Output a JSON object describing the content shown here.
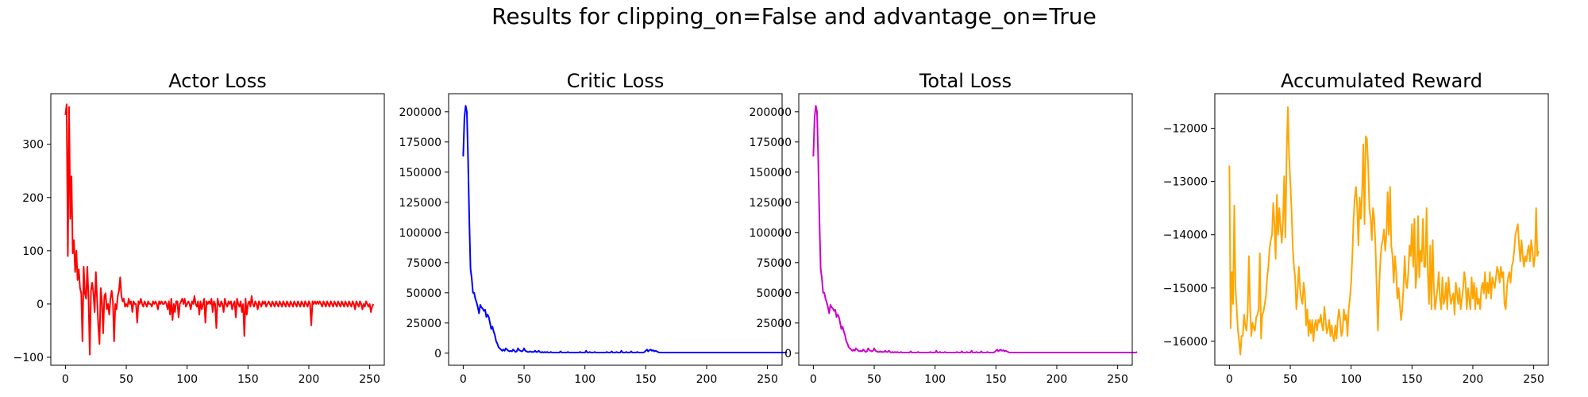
{
  "figure": {
    "suptitle": "Results for clipping_on=False and advantage_on=True"
  },
  "chart_data": [
    {
      "type": "line",
      "title": "Actor Loss",
      "xlabel": "",
      "ylabel": "",
      "color": "#ff0000",
      "xlim": [
        -12,
        262
      ],
      "ylim": [
        -115,
        395
      ],
      "xticks": [
        0,
        50,
        100,
        150,
        200,
        250
      ],
      "yticks": [
        -100,
        0,
        100,
        200,
        300
      ],
      "xtick_labels": [
        "0",
        "50",
        "100",
        "150",
        "200",
        "250"
      ],
      "ytick_labels": [
        "−100",
        "0",
        "100",
        "200",
        "300"
      ],
      "grid": false,
      "x_start": 0,
      "x_step": 1,
      "y": [
        355,
        375,
        90,
        370,
        160,
        240,
        95,
        120,
        60,
        100,
        45,
        65,
        30,
        20,
        -70,
        70,
        20,
        10,
        70,
        10,
        -95,
        25,
        40,
        20,
        -15,
        60,
        10,
        -40,
        -75,
        30,
        5,
        -55,
        15,
        20,
        -10,
        0,
        -20,
        10,
        25,
        5,
        -70,
        0,
        -10,
        15,
        25,
        50,
        15,
        5,
        10,
        -5,
        0,
        -5,
        10,
        0,
        5,
        -15,
        5,
        0,
        0,
        -35,
        5,
        0,
        10,
        0,
        -5,
        5,
        0,
        -5,
        5,
        0,
        0,
        -5,
        5,
        0,
        5,
        0,
        -10,
        5,
        0,
        5,
        0,
        0,
        5,
        0,
        -10,
        5,
        -20,
        10,
        -30,
        0,
        -15,
        5,
        5,
        -25,
        0,
        5,
        10,
        0,
        10,
        -5,
        0,
        5,
        0,
        -10,
        5,
        0,
        15,
        0,
        -5,
        5,
        -20,
        5,
        -10,
        0,
        10,
        -35,
        5,
        0,
        5,
        0,
        10,
        -15,
        5,
        0,
        -45,
        10,
        0,
        -5,
        5,
        0,
        -15,
        10,
        0,
        -5,
        5,
        0,
        5,
        -10,
        0,
        5,
        -25,
        10,
        0,
        -5,
        5,
        -15,
        0,
        -60,
        10,
        -20,
        0,
        5,
        -5,
        15,
        0,
        -5,
        5,
        0,
        -10,
        5,
        0,
        -5,
        5,
        0,
        5,
        -5,
        0,
        5,
        0,
        -5,
        5,
        0,
        -5,
        5,
        0,
        -5,
        5,
        0,
        -5,
        5,
        0,
        -5,
        5,
        0,
        -5,
        5,
        0,
        -5,
        5,
        0,
        -5,
        5,
        0,
        -5,
        5,
        0,
        -5,
        5,
        0,
        -5,
        5,
        0,
        -40,
        5,
        0,
        5,
        0,
        5,
        0,
        5,
        0,
        -5,
        5,
        0,
        -5,
        5,
        0,
        -5,
        5,
        0,
        -5,
        5,
        0,
        -5,
        5,
        0,
        -5,
        5,
        0,
        -5,
        5,
        0,
        -5,
        5,
        0,
        -5,
        5,
        0,
        -10,
        5,
        0,
        -5,
        5,
        0,
        -10,
        0,
        -5,
        5,
        0,
        -5,
        0,
        -15,
        -5,
        0
      ]
    },
    {
      "type": "line",
      "title": "Critic Loss",
      "xlabel": "",
      "ylabel": "",
      "color": "#0000ff",
      "xlim": [
        -12,
        262
      ],
      "ylim": [
        -10000,
        215000
      ],
      "xticks": [
        0,
        50,
        100,
        150,
        200,
        250
      ],
      "yticks": [
        0,
        25000,
        50000,
        75000,
        100000,
        125000,
        150000,
        175000,
        200000
      ],
      "xtick_labels": [
        "0",
        "50",
        "100",
        "150",
        "200",
        "250"
      ],
      "ytick_labels": [
        "0",
        "25000",
        "50000",
        "75000",
        "100000",
        "125000",
        "150000",
        "175000",
        "200000"
      ],
      "grid": false,
      "x_start": 0,
      "x_step": 1,
      "y": [
        163000,
        195000,
        205000,
        200000,
        160000,
        110000,
        70000,
        62000,
        50000,
        50000,
        45000,
        42000,
        38000,
        33000,
        40000,
        38000,
        37000,
        35000,
        36000,
        30000,
        32000,
        30000,
        25000,
        20000,
        22000,
        18000,
        15000,
        10000,
        8000,
        5000,
        4000,
        3000,
        2000,
        3000,
        2000,
        4000,
        3000,
        2000,
        1500,
        2000,
        1500,
        3000,
        2000,
        1000,
        1500,
        4000,
        2500,
        2000,
        1500,
        2000,
        4000,
        2000,
        1500,
        1000,
        1000,
        1500,
        1000,
        1000,
        1000,
        2000,
        1000,
        1000,
        2000,
        1000,
        500,
        1000,
        500,
        1000,
        500,
        1000,
        500,
        500,
        1000,
        500,
        500,
        500,
        500,
        500,
        500,
        500,
        1500,
        500,
        500,
        500,
        500,
        500,
        1000,
        500,
        500,
        500,
        500,
        500,
        500,
        500,
        500,
        500,
        1000,
        500,
        500,
        500,
        500,
        2000,
        500,
        500,
        1000,
        500,
        500,
        500,
        1000,
        500,
        500,
        500,
        500,
        500,
        500,
        500,
        500,
        500,
        1000,
        500,
        500,
        500,
        1500,
        500,
        500,
        500,
        1000,
        500,
        500,
        500,
        2000,
        500,
        500,
        500,
        1000,
        500,
        500,
        500,
        1500,
        500,
        500,
        500,
        500,
        1000,
        500,
        500,
        500,
        500,
        500,
        1000,
        2000,
        3000,
        1500,
        2500,
        3000,
        2000,
        2500,
        1500,
        2000,
        1500,
        1000,
        500,
        500,
        500,
        500,
        500,
        500,
        500,
        500,
        500,
        500,
        500,
        500,
        500,
        500,
        500,
        500,
        500,
        500,
        500,
        500,
        500,
        500,
        500,
        500,
        500,
        500,
        500,
        500,
        500,
        500,
        500,
        500,
        500,
        500,
        500,
        500,
        500,
        500,
        500,
        500,
        500,
        500,
        500,
        500,
        500,
        500,
        500,
        500,
        500,
        500,
        500,
        500,
        500,
        500,
        500,
        500,
        500,
        500,
        500,
        500,
        500,
        500,
        500,
        500,
        500,
        500,
        500,
        500,
        500,
        500,
        500,
        500,
        500,
        500,
        500,
        500,
        500,
        500,
        500,
        500,
        500,
        500,
        500,
        500,
        500,
        500,
        500,
        500,
        500,
        500,
        500,
        500,
        500,
        500,
        500,
        500,
        500,
        500,
        500,
        500,
        500,
        500,
        500,
        500,
        500,
        1000
      ]
    },
    {
      "type": "line",
      "title": "Total Loss",
      "xlabel": "",
      "ylabel": "",
      "color": "#cc00cc",
      "xlim": [
        -12,
        262
      ],
      "ylim": [
        -10000,
        215000
      ],
      "xticks": [
        0,
        50,
        100,
        150,
        200,
        250
      ],
      "yticks": [
        0,
        25000,
        50000,
        75000,
        100000,
        125000,
        150000,
        175000,
        200000
      ],
      "xtick_labels": [
        "0",
        "50",
        "100",
        "150",
        "200",
        "250"
      ],
      "ytick_labels": [
        "0",
        "25000",
        "50000",
        "75000",
        "100000",
        "125000",
        "150000",
        "175000",
        "200000"
      ],
      "grid": false,
      "x_start": 0,
      "x_step": 1,
      "y": [
        163000,
        195000,
        205000,
        200000,
        160000,
        110000,
        70000,
        62000,
        50000,
        50000,
        45000,
        42000,
        38000,
        33000,
        40000,
        38000,
        37000,
        35000,
        36000,
        30000,
        32000,
        30000,
        25000,
        20000,
        22000,
        18000,
        15000,
        10000,
        8000,
        5000,
        4000,
        3000,
        2000,
        3000,
        2000,
        4000,
        3000,
        2000,
        1500,
        2000,
        1500,
        3000,
        2000,
        1000,
        1500,
        4000,
        2500,
        2000,
        1500,
        2000,
        4000,
        2000,
        1500,
        1000,
        1000,
        1500,
        1000,
        1000,
        1000,
        2000,
        1000,
        1000,
        2000,
        1000,
        500,
        1000,
        500,
        1000,
        500,
        1000,
        500,
        500,
        1000,
        500,
        500,
        500,
        500,
        500,
        500,
        500,
        1500,
        500,
        500,
        500,
        500,
        500,
        1000,
        500,
        500,
        500,
        500,
        500,
        500,
        500,
        500,
        500,
        1000,
        500,
        500,
        500,
        500,
        2000,
        500,
        500,
        1000,
        500,
        500,
        500,
        1000,
        500,
        500,
        500,
        500,
        500,
        500,
        500,
        500,
        500,
        1000,
        500,
        500,
        500,
        1500,
        500,
        500,
        500,
        1000,
        500,
        500,
        500,
        2000,
        500,
        500,
        500,
        1000,
        500,
        500,
        500,
        1500,
        500,
        500,
        500,
        500,
        1000,
        500,
        500,
        500,
        500,
        500,
        1000,
        2000,
        3000,
        1500,
        2500,
        3000,
        2000,
        2500,
        1500,
        2000,
        1500,
        1000,
        500,
        500,
        500,
        500,
        500,
        500,
        500,
        500,
        500,
        500,
        500,
        500,
        500,
        500,
        500,
        500,
        500,
        500,
        500,
        500,
        500,
        500,
        500,
        500,
        500,
        500,
        500,
        500,
        500,
        500,
        500,
        500,
        500,
        500,
        500,
        500,
        500,
        500,
        500,
        500,
        500,
        500,
        500,
        500,
        500,
        500,
        500,
        500,
        500,
        500,
        500,
        500,
        500,
        500,
        500,
        500,
        500,
        500,
        500,
        500,
        500,
        500,
        500,
        500,
        500,
        500,
        500,
        500,
        500,
        500,
        500,
        500,
        500,
        500,
        500,
        500,
        500,
        500,
        500,
        500,
        500,
        500,
        500,
        500,
        500,
        500,
        500,
        500,
        500,
        500,
        500,
        500,
        500,
        500,
        500,
        500,
        500,
        500,
        500,
        500,
        500,
        500,
        500,
        500,
        500,
        1000
      ]
    },
    {
      "type": "line",
      "title": "Accumulated Reward",
      "xlabel": "",
      "ylabel": "",
      "color": "#ffa500",
      "xlim": [
        -12,
        262
      ],
      "ylim": [
        -16450,
        -11350
      ],
      "xticks": [
        0,
        50,
        100,
        150,
        200,
        250
      ],
      "yticks": [
        -16000,
        -15000,
        -14000,
        -13000,
        -12000
      ],
      "xtick_labels": [
        "0",
        "50",
        "100",
        "150",
        "200",
        "250"
      ],
      "ytick_labels": [
        "−16000",
        "−15000",
        "−14000",
        "−13000",
        "−12000"
      ],
      "grid": false,
      "x_start": 0,
      "x_step": 1,
      "y": [
        -12700,
        -15750,
        -14700,
        -15300,
        -13450,
        -15000,
        -15400,
        -15800,
        -16000,
        -16250,
        -15900,
        -15900,
        -15500,
        -15700,
        -15800,
        -15450,
        -14400,
        -15400,
        -15900,
        -15650,
        -15750,
        -15800,
        -15550,
        -15500,
        -15400,
        -14350,
        -15950,
        -15500,
        -15450,
        -15300,
        -15150,
        -14800,
        -14600,
        -14250,
        -14100,
        -14000,
        -13400,
        -13800,
        -14450,
        -13250,
        -14000,
        -13500,
        -13850,
        -14150,
        -13750,
        -12900,
        -14050,
        -12500,
        -11600,
        -12500,
        -13000,
        -13500,
        -14200,
        -14600,
        -14800,
        -15400,
        -15100,
        -14600,
        -15000,
        -15200,
        -15300,
        -14900,
        -15100,
        -15700,
        -15400,
        -15900,
        -15600,
        -15850,
        -15600,
        -16000,
        -15700,
        -15600,
        -15800,
        -15600,
        -15650,
        -15500,
        -15700,
        -15800,
        -15350,
        -15600,
        -15850,
        -15750,
        -15600,
        -15900,
        -15700,
        -15900,
        -16000,
        -15700,
        -15950,
        -15600,
        -15400,
        -15600,
        -15900,
        -15800,
        -15400,
        -15600,
        -15500,
        -15900,
        -15400,
        -15200,
        -14900,
        -14400,
        -13700,
        -13300,
        -13100,
        -13500,
        -14200,
        -13300,
        -13700,
        -13200,
        -12300,
        -13800,
        -12150,
        -12200,
        -12700,
        -13500,
        -13700,
        -14100,
        -13500,
        -13700,
        -14200,
        -15000,
        -15800,
        -15000,
        -14500,
        -14200,
        -14100,
        -13900,
        -14300,
        -14000,
        -13200,
        -14000,
        -13100,
        -14200,
        -14400,
        -14900,
        -14400,
        -14700,
        -15200,
        -15000,
        -15300,
        -15600,
        -15400,
        -15000,
        -14400,
        -14900,
        -15000,
        -14700,
        -14200,
        -14400,
        -13800,
        -14600,
        -13700,
        -15000,
        -14700,
        -13650,
        -14800,
        -14300,
        -14500,
        -13700,
        -14600,
        -14600,
        -13500,
        -14700,
        -15300,
        -14200,
        -15400,
        -14100,
        -15000,
        -15400,
        -15200,
        -15000,
        -14700,
        -15200,
        -15400,
        -14800,
        -15300,
        -15200,
        -14900,
        -15400,
        -14800,
        -15100,
        -15300,
        -15200,
        -15100,
        -15500,
        -14900,
        -15100,
        -15300,
        -15000,
        -15400,
        -15200,
        -15000,
        -14700,
        -14900,
        -15400,
        -15000,
        -15200,
        -15400,
        -14800,
        -15200,
        -14900,
        -15400,
        -15000,
        -15300,
        -15200,
        -15400,
        -15000,
        -14900,
        -15100,
        -14700,
        -15200,
        -14900,
        -15100,
        -14700,
        -15200,
        -14800,
        -14900,
        -15000,
        -14800,
        -14600,
        -14700,
        -14900,
        -14600,
        -14800,
        -14700,
        -15300,
        -15400,
        -15000,
        -14800,
        -14700,
        -14900,
        -14600,
        -14500,
        -14300,
        -14000,
        -13900,
        -13800,
        -14200,
        -14500,
        -14100,
        -14400,
        -14600,
        -14400,
        -14500,
        -14300,
        -14200,
        -14500,
        -14100,
        -14300,
        -14600,
        -14400,
        -13500,
        -14400,
        -14300
      ]
    }
  ]
}
